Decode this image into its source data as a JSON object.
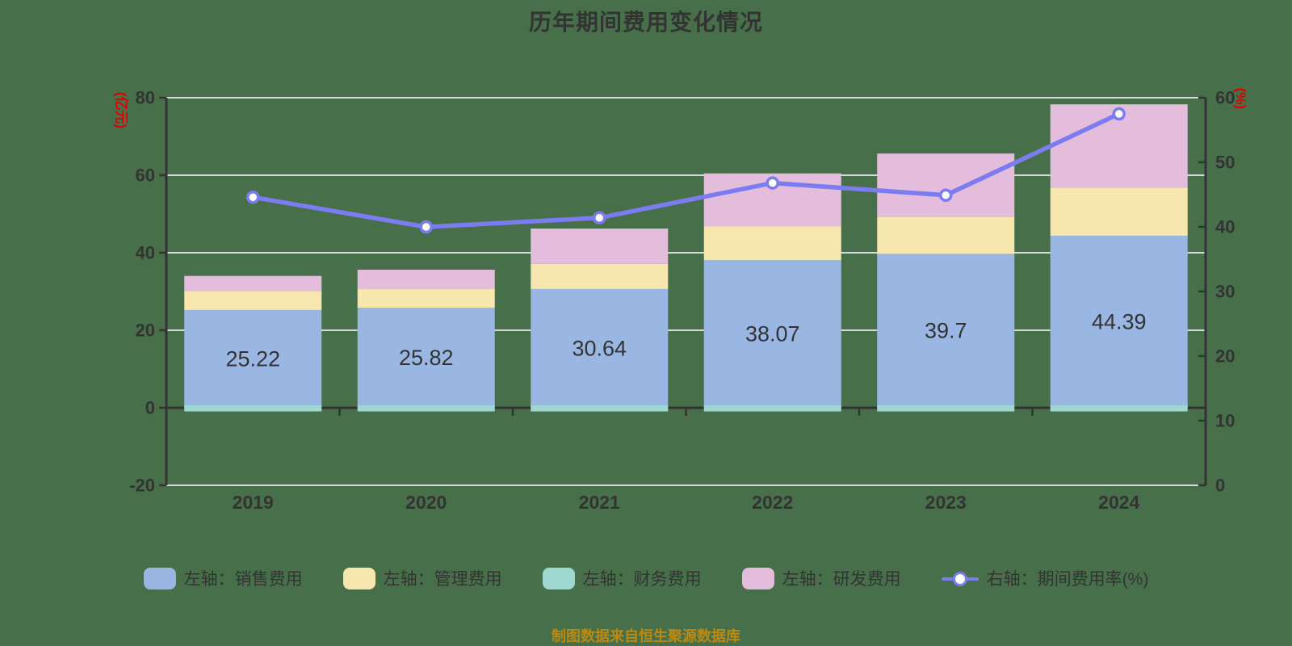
{
  "title": "历年期间费用变化情况",
  "caption": "制图数据来自恒生聚源数据库",
  "colors": {
    "background": "#47704a",
    "text": "#333333",
    "grid": "#d9d9d9",
    "axis": "#333333",
    "axis_title": "#e00000",
    "caption": "#bc8a12",
    "selling": "#9ab7e3",
    "admin": "#f8e6af",
    "finance": "#9fd8d1",
    "rnd": "#e4bddc",
    "rate_line": "#7b7cf1",
    "marker_fill": "#ffffff"
  },
  "chart_data": {
    "type": "bar",
    "subtype": "stacked-bar-with-line",
    "title": "历年期间费用变化情况",
    "categories": [
      "2019",
      "2020",
      "2021",
      "2022",
      "2023",
      "2024"
    ],
    "left_axis": {
      "title": "(亿元)",
      "min": -20,
      "max": 80,
      "interval": 20
    },
    "right_axis": {
      "title": "(%)",
      "min": 0,
      "max": 60,
      "interval": 10
    },
    "grid": true,
    "legend_position": "bottom",
    "series": [
      {
        "key": "selling",
        "name": "左轴：销售费用",
        "type": "bar",
        "axis": "left",
        "role": "stack-up",
        "color_key": "selling",
        "values": [
          25.22,
          25.82,
          30.64,
          38.07,
          39.7,
          44.39
        ],
        "labels": [
          "25.22",
          "25.82",
          "30.64",
          "38.07",
          "39.7",
          "44.39"
        ]
      },
      {
        "key": "admin",
        "name": "左轴：管理费用",
        "type": "bar",
        "axis": "left",
        "role": "stack-up",
        "color_key": "admin",
        "values": [
          4.9,
          4.8,
          6.5,
          8.7,
          9.6,
          12.4
        ]
      },
      {
        "key": "finance",
        "name": "左轴：财务费用",
        "type": "bar",
        "axis": "left",
        "role": "zero-strip",
        "color_key": "finance",
        "values": [
          -0.5,
          -0.5,
          -0.6,
          -0.7,
          -0.8,
          -0.8
        ]
      },
      {
        "key": "rnd",
        "name": "左轴：研发费用",
        "type": "bar",
        "axis": "left",
        "role": "stack-up",
        "color_key": "rnd",
        "values": [
          3.9,
          5.0,
          9.1,
          13.7,
          16.3,
          21.5
        ]
      },
      {
        "key": "rate",
        "name": "右轴：期间费用率(%)",
        "type": "line",
        "axis": "right",
        "role": "line",
        "color_key": "rate_line",
        "values": [
          44.6,
          40.0,
          41.4,
          46.8,
          44.9,
          57.5
        ]
      }
    ]
  }
}
